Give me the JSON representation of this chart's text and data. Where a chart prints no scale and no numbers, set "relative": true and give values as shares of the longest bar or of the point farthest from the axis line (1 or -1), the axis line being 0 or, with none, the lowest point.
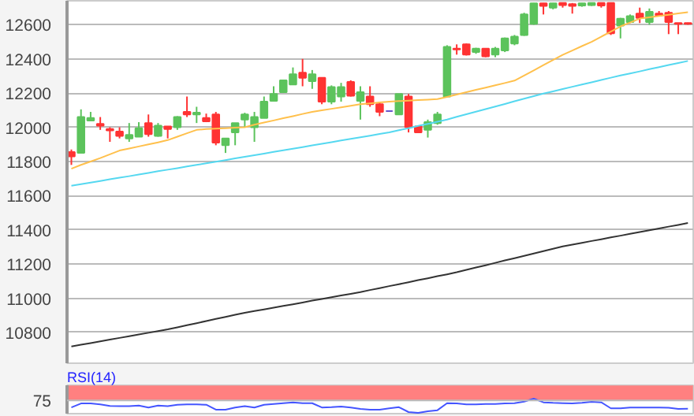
{
  "chart_data": [
    {
      "type": "candlestick",
      "categories": [
        null,
        null,
        null,
        null,
        null,
        null,
        null,
        null,
        null,
        null,
        null,
        null,
        null,
        null,
        null,
        null,
        null,
        null,
        null,
        null,
        null,
        null,
        null,
        null,
        null,
        null,
        null,
        null,
        null,
        null,
        null,
        null,
        null,
        null,
        null,
        null,
        null,
        null,
        null,
        null,
        null,
        null,
        null,
        null,
        null,
        null,
        null,
        null,
        null,
        null,
        null,
        null,
        null,
        null,
        null,
        null,
        null,
        null,
        null,
        null,
        null,
        null,
        null,
        null,
        null
      ],
      "ohlc": [
        [
          11855,
          11870,
          11780,
          11830
        ],
        [
          11850,
          12105,
          11850,
          12060
        ],
        [
          12040,
          12090,
          12040,
          12055
        ],
        [
          12020,
          12060,
          11985,
          12010
        ],
        [
          11990,
          12000,
          11915,
          11982
        ],
        [
          11975,
          12000,
          11935,
          11950
        ],
        [
          11935,
          12025,
          11915,
          11955
        ],
        [
          11945,
          12030,
          11945,
          11995
        ],
        [
          12025,
          12075,
          11945,
          11960
        ],
        [
          11950,
          12025,
          11945,
          12010
        ],
        [
          12005,
          12005,
          11935,
          11990
        ],
        [
          12000,
          12065,
          11985,
          12060
        ],
        [
          12090,
          12180,
          12060,
          12075
        ],
        [
          12075,
          12120,
          12025,
          12085
        ],
        [
          12055,
          12080,
          12030,
          12035
        ],
        [
          12075,
          12090,
          11895,
          11910
        ],
        [
          11895,
          11935,
          11850,
          11935
        ],
        [
          11970,
          12025,
          11895,
          12025
        ],
        [
          12045,
          12085,
          12000,
          12075
        ],
        [
          12000,
          12090,
          11915,
          12060
        ],
        [
          12055,
          12180,
          12055,
          12150
        ],
        [
          12155,
          12240,
          12150,
          12195
        ],
        [
          12205,
          12275,
          12205,
          12275
        ],
        [
          12250,
          12350,
          12250,
          12310
        ],
        [
          12320,
          12400,
          12240,
          12290
        ],
        [
          12270,
          12335,
          12225,
          12310
        ],
        [
          12290,
          12290,
          12135,
          12150
        ],
        [
          12150,
          12245,
          12135,
          12235
        ],
        [
          12180,
          12260,
          12150,
          12235
        ],
        [
          12265,
          12275,
          12180,
          12185
        ],
        [
          12155,
          12240,
          12045,
          12205
        ],
        [
          12180,
          12240,
          12120,
          12135
        ],
        [
          12135,
          12150,
          12065,
          12090
        ],
        [
          12095,
          12095,
          12095,
          12095
        ],
        [
          12075,
          12195,
          12075,
          12195
        ],
        [
          12180,
          12195,
          11970,
          12000
        ],
        [
          12005,
          12005,
          11970,
          11970
        ],
        [
          11985,
          12045,
          11940,
          12030
        ],
        [
          12025,
          12090,
          12015,
          12075
        ],
        [
          12180,
          12480,
          12175,
          12470
        ],
        [
          12460,
          12485,
          12425,
          12455
        ],
        [
          12485,
          12490,
          12420,
          12425
        ],
        [
          12440,
          12465,
          12430,
          12460
        ],
        [
          12460,
          12460,
          12410,
          12415
        ],
        [
          12425,
          12470,
          12410,
          12460
        ],
        [
          12450,
          12525,
          12440,
          12520
        ],
        [
          12490,
          12540,
          12480,
          12530
        ],
        [
          12540,
          12670,
          12535,
          12660
        ],
        [
          12605,
          12727,
          12600,
          12725
        ],
        [
          12725,
          12727,
          12660,
          12710
        ],
        [
          12700,
          12727,
          12690,
          12725
        ],
        [
          12727,
          12727,
          12700,
          12715
        ],
        [
          12720,
          12727,
          12665,
          12710
        ],
        [
          12712,
          12727,
          12705,
          12725
        ],
        [
          12715,
          12727,
          12710,
          12727
        ],
        [
          12727,
          12727,
          12700,
          12712
        ],
        [
          12727,
          12727,
          12540,
          12550
        ],
        [
          12595,
          12640,
          12520,
          12635
        ],
        [
          12615,
          12660,
          12610,
          12650
        ],
        [
          12665,
          12700,
          12610,
          12640
        ],
        [
          12615,
          12695,
          12600,
          12675
        ],
        [
          12665,
          12680,
          12650,
          12655
        ],
        [
          12670,
          12680,
          12545,
          12615
        ],
        [
          12610,
          12610,
          12545,
          12605
        ],
        [
          12610,
          12612,
          12600,
          12605
        ]
      ],
      "colors": [
        "#ff3333",
        "#5cc35c",
        "#5cc35c",
        "#ff3333",
        "#ff3333",
        "#ff3333",
        "#5cc35c",
        "#5cc35c",
        "#ff3333",
        "#5cc35c",
        "#ff3333",
        "#5cc35c",
        "#ff3333",
        "#5cc35c",
        "#ff3333",
        "#ff3333",
        "#5cc35c",
        "#5cc35c",
        "#5cc35c",
        "#5cc35c",
        "#5cc35c",
        "#5cc35c",
        "#5cc35c",
        "#5cc35c",
        "#ff3333",
        "#5cc35c",
        "#ff3333",
        "#5cc35c",
        "#5cc35c",
        "#ff3333",
        "#5cc35c",
        "#ff3333",
        "#ff3333",
        "#6655cc",
        "#5cc35c",
        "#ff3333",
        "#ff3333",
        "#5cc35c",
        "#5cc35c",
        "#5cc35c",
        "#ff3333",
        "#ff3333",
        "#5cc35c",
        "#ff3333",
        "#5cc35c",
        "#5cc35c",
        "#5cc35c",
        "#5cc35c",
        "#5cc35c",
        "#ff3333",
        "#5cc35c",
        "#ff3333",
        "#ff3333",
        "#5cc35c",
        "#5cc35c",
        "#ff3333",
        "#ff3333",
        "#5cc35c",
        "#5cc35c",
        "#ff3333",
        "#5cc35c",
        "#ff3333",
        "#ff3333",
        "#ff3333",
        "#ff3333"
      ],
      "series": [
        {
          "type": "line",
          "color": "#ffc04c",
          "values": [
            11758,
            11780,
            11800,
            11820,
            11842,
            11864,
            11876,
            11888,
            11900,
            11912,
            11925,
            11945,
            11965,
            11985,
            11990,
            11992,
            11995,
            11998,
            12000,
            12015,
            12028,
            12040,
            12053,
            12065,
            12078,
            12090,
            12099,
            12108,
            12117,
            12126,
            12135,
            12140,
            12145,
            12150,
            12153,
            12156,
            12159,
            12162,
            12165,
            12178,
            12192,
            12205,
            12219,
            12232,
            12246,
            12259,
            12273,
            12303,
            12333,
            12364,
            12394,
            12424,
            12449,
            12475,
            12500,
            12530,
            12560,
            12590,
            12613,
            12636,
            12643,
            12651,
            12658,
            12666,
            12673
          ]
        },
        {
          "type": "line",
          "color": "#55d8f0",
          "values": [
            11658,
            11667,
            11677,
            11686,
            11696,
            11705,
            11714,
            11724,
            11733,
            11743,
            11752,
            11761,
            11771,
            11780,
            11789,
            11799,
            11808,
            11818,
            11827,
            11837,
            11846,
            11856,
            11865,
            11875,
            11884,
            11894,
            11904,
            11913,
            11923,
            11932,
            11942,
            11951,
            11961,
            11970,
            11983,
            11995,
            12008,
            12020,
            12033,
            12045,
            12061,
            12076,
            12091,
            12106,
            12121,
            12136,
            12152,
            12167,
            12182,
            12197,
            12210,
            12224,
            12237,
            12250,
            12263,
            12277,
            12290,
            12303,
            12315,
            12327,
            12340,
            12352,
            12364,
            12376,
            12388
          ]
        },
        {
          "type": "line",
          "color": "#333333",
          "values": [
            10718,
            10728,
            10738,
            10748,
            10758,
            10768,
            10778,
            10788,
            10798,
            10808,
            10818,
            10830,
            10842,
            10854,
            10867,
            10879,
            10891,
            10903,
            10915,
            10925,
            10935,
            10945,
            10955,
            10965,
            10975,
            10986,
            10996,
            11006,
            11016,
            11026,
            11036,
            11048,
            11059,
            11071,
            11082,
            11094,
            11106,
            11117,
            11129,
            11140,
            11152,
            11166,
            11180,
            11193,
            11207,
            11221,
            11234,
            11248,
            11262,
            11276,
            11289,
            11303,
            11314,
            11324,
            11335,
            11345,
            11356,
            11366,
            11377,
            11387,
            11398,
            11408,
            11419,
            11429,
            11440
          ]
        }
      ],
      "ylim": [
        10620,
        12740
      ],
      "yticks": [
        10800,
        11000,
        11200,
        11400,
        11600,
        11800,
        12000,
        12200,
        12400,
        12600
      ],
      "grid": "y",
      "tick_labels": "y"
    },
    {
      "type": "line",
      "title": "RSI(14)",
      "categories": [
        null,
        null,
        null,
        null,
        null,
        null,
        null,
        null,
        null,
        null,
        null,
        null,
        null,
        null,
        null,
        null,
        null,
        null,
        null,
        null,
        null,
        null,
        null,
        null,
        null,
        null,
        null,
        null,
        null,
        null,
        null,
        null,
        null,
        null,
        null,
        null,
        null,
        null,
        null,
        null,
        null,
        null,
        null,
        null,
        null,
        null,
        null,
        null,
        null,
        null,
        null,
        null,
        null,
        null,
        null,
        null,
        null,
        null,
        null,
        null,
        null,
        null,
        null,
        null,
        null
      ],
      "series": [
        {
          "color": "#4455ff",
          "values": [
            0.38,
            0.66,
            0.66,
            0.6,
            0.49,
            0.47,
            0.47,
            0.51,
            0.38,
            0.51,
            0.47,
            0.57,
            0.6,
            0.6,
            0.57,
            0.23,
            0.23,
            0.38,
            0.47,
            0.38,
            0.57,
            0.62,
            0.68,
            0.74,
            0.68,
            0.68,
            0.38,
            0.4,
            0.45,
            0.38,
            0.28,
            0.23,
            0.23,
            0.32,
            0.4,
            0.06,
            0,
            0.11,
            0.19,
            0.68,
            0.66,
            0.6,
            0.6,
            0.62,
            0.62,
            0.66,
            0.68,
            0.79,
            1,
            0.74,
            0.7,
            0.68,
            0.66,
            0.7,
            0.77,
            0.74,
            0.32,
            0.32,
            0.38,
            0.38,
            0.38,
            0.38,
            0.36,
            0.28,
            0.3
          ]
        }
      ],
      "relative": true,
      "tick_labels": false,
      "bands": [
        {
          "axis": "y",
          "from": 0.87,
          "to": 1.93,
          "color": "#ff8080"
        }
      ],
      "annotations": [
        "75"
      ]
    }
  ]
}
